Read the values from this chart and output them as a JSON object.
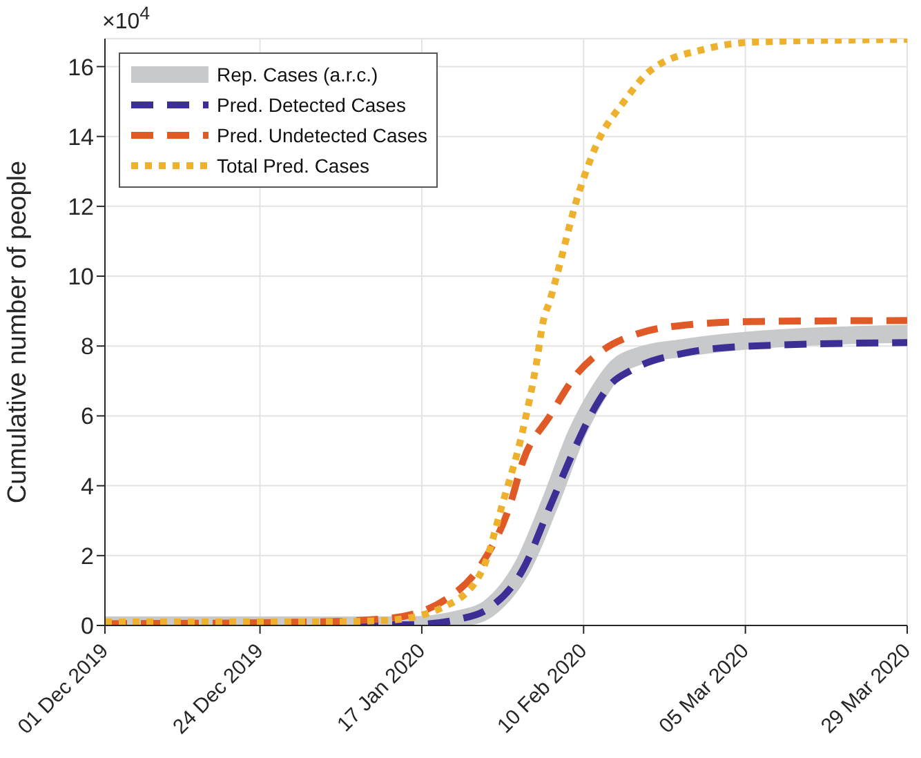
{
  "chart_data": {
    "type": "line",
    "ylabel": "Cumulative number of people",
    "annotations": [
      "×10$^{4}$"
    ],
    "xlim": [
      "2019-12-01",
      "2020-03-29"
    ],
    "xticks": [
      {
        "value": "2019-12-01",
        "label": "01 Dec 2019"
      },
      {
        "value": "2019-12-24",
        "label": "24 Dec 2019"
      },
      {
        "value": "2020-01-17",
        "label": "17 Jan 2020"
      },
      {
        "value": "2020-02-10",
        "label": "10 Feb 2020"
      },
      {
        "value": "2020-03-05",
        "label": "05 Mar 2020"
      },
      {
        "value": "2020-03-29",
        "label": "29 Mar 2020"
      }
    ],
    "ylim": [
      0,
      16.8
    ],
    "yticks": [
      0,
      2,
      4,
      6,
      8,
      10,
      12,
      14,
      16
    ],
    "grid": true,
    "legend": "top left",
    "marker": "none",
    "series": [
      {
        "name": "Rep. Cases (a.r.c.)",
        "color": "#c8c9cb",
        "line_style": "solid",
        "x": [
          "2019-12-01",
          "2020-01-15",
          "2020-01-23",
          "2020-01-27",
          "2020-02-01",
          "2020-02-05",
          "2020-02-09",
          "2020-02-12",
          "2020-02-15",
          "2020-02-18",
          "2020-02-25",
          "2020-03-05",
          "2020-03-29"
        ],
        "values": [
          0,
          0,
          0.2,
          0.5,
          1.7,
          3.5,
          5.5,
          6.6,
          7.4,
          7.7,
          7.95,
          8.15,
          8.35
        ]
      },
      {
        "name": "Pred. Detected Cases",
        "color": "#3b2f96",
        "line_style": "dashed",
        "x": [
          "2019-12-01",
          "2020-01-15",
          "2020-01-23",
          "2020-01-27",
          "2020-02-01",
          "2020-02-05",
          "2020-02-09",
          "2020-02-11",
          "2020-02-14",
          "2020-02-17",
          "2020-02-25",
          "2020-03-06",
          "2020-03-29"
        ],
        "values": [
          0,
          0.02,
          0.2,
          0.5,
          1.6,
          3.4,
          5.2,
          6,
          6.9,
          7.3,
          7.8,
          8,
          8.1
        ]
      },
      {
        "name": "Pred. Undetected Cases",
        "color": "#e05a27",
        "line_style": "dashed",
        "x": [
          "2019-12-01",
          "2020-01-01",
          "2020-01-12",
          "2020-01-21",
          "2020-01-26",
          "2020-01-30",
          "2020-02-01",
          "2020-02-05",
          "2020-02-09",
          "2020-02-13",
          "2020-02-18",
          "2020-02-25",
          "2020-03-06",
          "2020-03-29"
        ],
        "values": [
          0.05,
          0.1,
          0.2,
          0.8,
          1.8,
          3.4,
          4.7,
          6,
          7.2,
          7.9,
          8.35,
          8.6,
          8.7,
          8.73
        ]
      },
      {
        "name": "Total Pred. Cases",
        "color": "#edb12d",
        "line_style": "dotted",
        "x": [
          "2019-12-01",
          "2020-01-01",
          "2020-01-12",
          "2020-01-21",
          "2020-01-26",
          "2020-01-29",
          "2020-02-01",
          "2020-02-03",
          "2020-02-04",
          "2020-02-05",
          "2020-02-06",
          "2020-02-09",
          "2020-02-12",
          "2020-02-16",
          "2020-02-20",
          "2020-02-28",
          "2020-03-06",
          "2020-03-29"
        ],
        "values": [
          0.1,
          0.1,
          0.15,
          0.6,
          1.6,
          3.5,
          5.6,
          7.5,
          8.7,
          9.3,
          10,
          12.2,
          13.8,
          15,
          15.9,
          16.5,
          16.7,
          16.78
        ]
      }
    ]
  }
}
